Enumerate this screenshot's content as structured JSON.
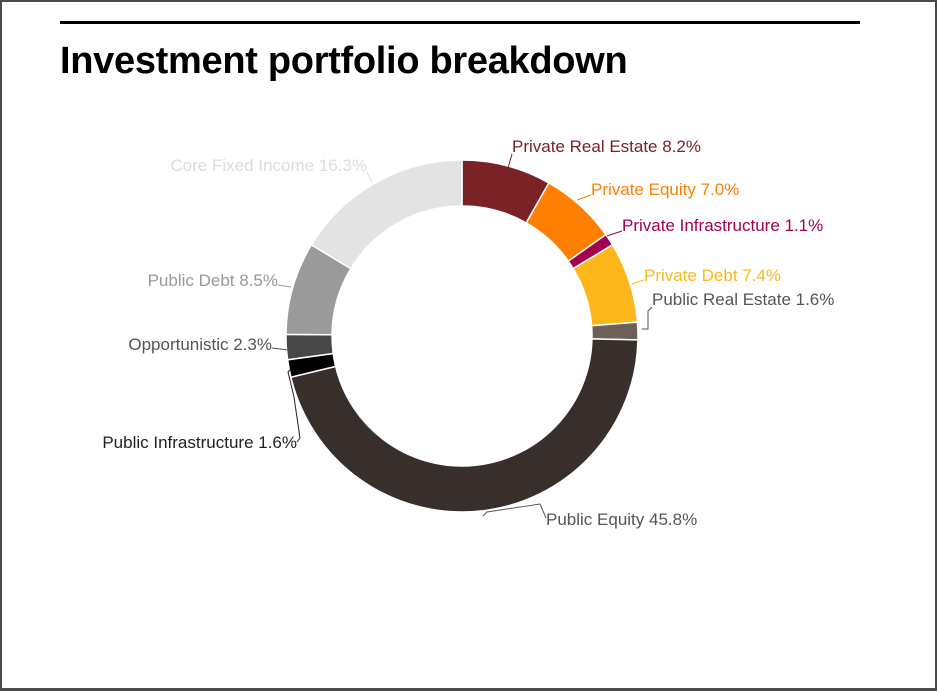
{
  "title": "Investment portfolio breakdown",
  "chart_data": {
    "type": "pie",
    "variant": "donut",
    "title": "Investment portfolio breakdown",
    "slices": [
      {
        "label": "Private Real Estate",
        "value_label": "8.2%",
        "value": 8.2,
        "color": "#7b2226"
      },
      {
        "label": "Private Equity",
        "value_label": "7.0%",
        "value": 7.0,
        "color": "#ff7f00"
      },
      {
        "label": "Private Infrastructure",
        "value_label": "1.1%",
        "value": 1.1,
        "color": "#a3004f"
      },
      {
        "label": "Private Debt",
        "value_label": "7.4%",
        "value": 7.4,
        "color": "#fdb71b"
      },
      {
        "label": "Public Real Estate",
        "value_label": "1.6%",
        "value": 1.6,
        "color": "#6e6058"
      },
      {
        "label": "Public Equity",
        "value_label": "45.8%",
        "value": 45.8,
        "color": "#382e2c"
      },
      {
        "label": "Public Infrastructure",
        "value_label": "1.6%",
        "value": 1.6,
        "color": "#000000"
      },
      {
        "label": "Opportunistic",
        "value_label": "2.3%",
        "value": 2.3,
        "color": "#474747"
      },
      {
        "label": "Public Debt",
        "value_label": "8.5%",
        "value": 8.5,
        "color": "#9a9a9a"
      },
      {
        "label": "Core Fixed Income",
        "value_label": "16.3%",
        "value": 16.3,
        "color": "#e3e3e3"
      }
    ],
    "label_colors": {
      "Private Real Estate": "#7b2226",
      "Private Equity": "#ff7f00",
      "Private Infrastructure": "#a3004f",
      "Private Debt": "#fdb71b",
      "Public Real Estate": "#555555",
      "Public Equity": "#555555",
      "Public Infrastructure": "#222222",
      "Opportunistic": "#555555",
      "Public Debt": "#999999",
      "Core Fixed Income": "#dddddd"
    }
  }
}
